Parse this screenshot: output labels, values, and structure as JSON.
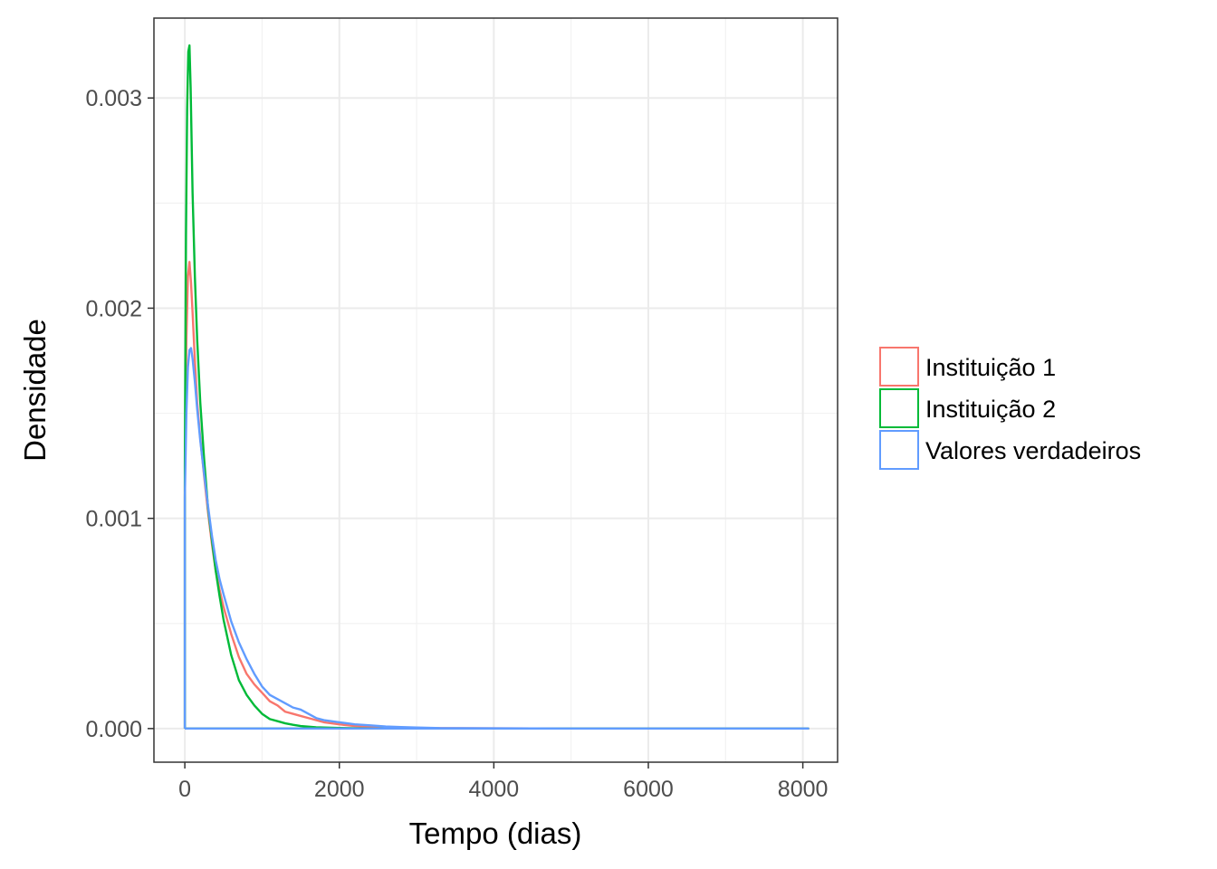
{
  "chart_data": {
    "type": "line",
    "title": "",
    "xlabel": "Tempo (dias)",
    "ylabel": "Densidade",
    "xlim": [
      -400,
      8450
    ],
    "ylim": [
      -0.00016,
      0.00338
    ],
    "x_ticks": [
      0,
      2000,
      4000,
      6000,
      8000
    ],
    "x_tick_labels": [
      "0",
      "2000",
      "4000",
      "6000",
      "8000"
    ],
    "y_ticks": [
      0,
      0.001,
      0.002,
      0.003
    ],
    "y_tick_labels": [
      "0.000",
      "0.001",
      "0.002",
      "0.003"
    ],
    "grid": true,
    "legend_position": "right",
    "series": [
      {
        "name": "Instituição 1",
        "color": "#f8766d",
        "x": [
          0,
          0,
          20,
          40,
          60,
          80,
          100,
          130,
          160,
          200,
          250,
          300,
          350,
          400,
          450,
          500,
          600,
          700,
          800,
          900,
          1000,
          1100,
          1200,
          1300,
          1400,
          1500,
          1600,
          1800,
          2000,
          2200,
          2500,
          2800,
          3200,
          4000,
          5000,
          6000,
          7000,
          8070,
          0
        ],
        "y": [
          0,
          0.00115,
          0.00185,
          0.00215,
          0.00222,
          0.00212,
          0.00198,
          0.00175,
          0.00155,
          0.00138,
          0.0012,
          0.00103,
          0.00088,
          0.00075,
          0.00066,
          0.00058,
          0.00045,
          0.00034,
          0.00026,
          0.00021,
          0.00017,
          0.00013,
          0.00011,
          8e-05,
          7e-05,
          6e-05,
          5e-05,
          3e-05,
          2e-05,
          1.2e-05,
          7e-06,
          4e-06,
          2e-06,
          1e-06,
          0,
          0,
          0,
          0,
          0
        ]
      },
      {
        "name": "Instituição 2",
        "color": "#00ba38",
        "x": [
          0,
          0,
          15,
          30,
          45,
          60,
          75,
          100,
          130,
          160,
          200,
          250,
          300,
          350,
          400,
          450,
          500,
          600,
          700,
          800,
          900,
          1000,
          1100,
          1200,
          1300,
          1400,
          1500,
          1700,
          2000,
          2300,
          2600,
          3000,
          4000,
          5000,
          6000,
          7000,
          8070,
          0
        ],
        "y": [
          0,
          0.00125,
          0.00235,
          0.00295,
          0.00322,
          0.00325,
          0.00305,
          0.00255,
          0.00215,
          0.00185,
          0.00155,
          0.00128,
          0.00105,
          0.0009,
          0.00075,
          0.00063,
          0.00052,
          0.00035,
          0.00023,
          0.00016,
          0.00011,
          7e-05,
          4.5e-05,
          3.5e-05,
          2.5e-05,
          1.8e-05,
          1.2e-05,
          6e-06,
          3e-06,
          1e-06,
          0,
          0,
          0,
          0,
          0,
          0,
          0,
          0
        ]
      },
      {
        "name": "Valores verdadeiros",
        "color": "#619cff",
        "x": [
          0,
          0,
          20,
          40,
          60,
          80,
          100,
          130,
          160,
          200,
          250,
          300,
          350,
          400,
          450,
          500,
          600,
          700,
          800,
          900,
          1000,
          1100,
          1200,
          1300,
          1400,
          1500,
          1600,
          1700,
          1800,
          2000,
          2200,
          2400,
          2600,
          2800,
          3000,
          3300,
          4000,
          5000,
          6000,
          7000,
          8070,
          0
        ],
        "y": [
          0,
          0.0011,
          0.0015,
          0.00172,
          0.0018,
          0.00181,
          0.00176,
          0.00165,
          0.00152,
          0.00137,
          0.00121,
          0.00106,
          0.00092,
          0.0008,
          0.00071,
          0.00064,
          0.00051,
          0.00041,
          0.00033,
          0.00026,
          0.0002,
          0.00016,
          0.00014,
          0.00012,
          0.0001,
          9e-05,
          7e-05,
          5e-05,
          4e-05,
          3e-05,
          2e-05,
          1.5e-05,
          1e-05,
          7e-06,
          5e-06,
          2e-06,
          1e-06,
          0,
          0,
          0,
          0,
          0
        ]
      }
    ]
  }
}
